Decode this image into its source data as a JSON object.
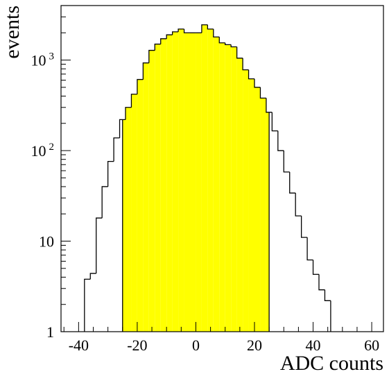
{
  "chart_data": {
    "type": "histogram",
    "xlabel": "ADC counts",
    "ylabel": "events",
    "xlim": [
      -46,
      64
    ],
    "ylim": [
      1,
      4000
    ],
    "yscale": "log",
    "grid": false,
    "legend": "none",
    "x_ticks": [
      {
        "value": -40,
        "label": "-40"
      },
      {
        "value": -20,
        "label": "-20"
      },
      {
        "value": 0,
        "label": "0"
      },
      {
        "value": 20,
        "label": "20"
      },
      {
        "value": 40,
        "label": "40"
      },
      {
        "value": 60,
        "label": "60"
      }
    ],
    "y_ticks": [
      {
        "value": 1,
        "base": "1",
        "exp": ""
      },
      {
        "value": 10,
        "base": "10",
        "exp": ""
      },
      {
        "value": 100,
        "base": "10",
        "exp": "2"
      },
      {
        "value": 1000,
        "base": "10",
        "exp": "3"
      }
    ],
    "bin_width": 2,
    "bin_edges_start": -38,
    "values": [
      3.8,
      4.4,
      18,
      40,
      76,
      138,
      220,
      300,
      420,
      610,
      930,
      1280,
      1500,
      1720,
      1900,
      2050,
      2200,
      2000,
      2000,
      2000,
      2450,
      2200,
      1800,
      1550,
      1480,
      1400,
      1050,
      780,
      620,
      500,
      380,
      265,
      165,
      100,
      58,
      34,
      19,
      11,
      6.2,
      4.3,
      2.9,
      2.2
    ],
    "highlight_range": [
      -25,
      25
    ],
    "colors": {
      "highlight_fill": "#ffff00",
      "line": "#000000",
      "background": "#ffffff"
    }
  }
}
